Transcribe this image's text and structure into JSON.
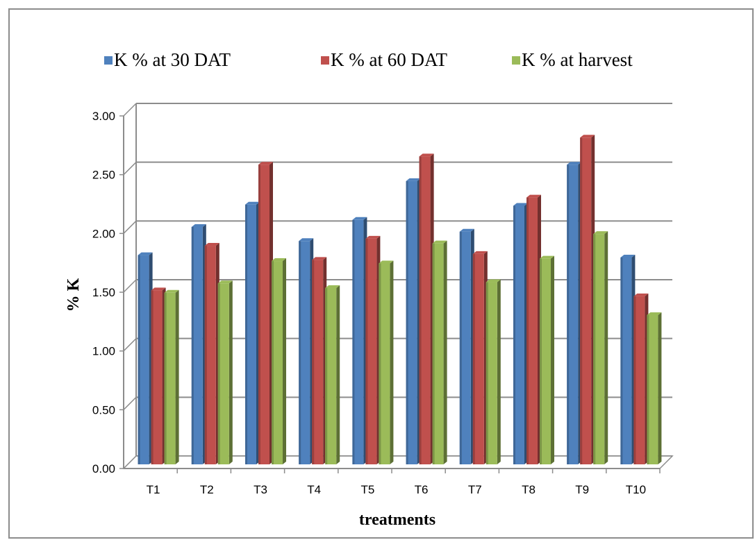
{
  "chart_data": {
    "type": "bar",
    "title": "",
    "xlabel": "treatments",
    "ylabel": "% K",
    "ylim": [
      0,
      3
    ],
    "y_ticks": [
      "0.00",
      "0.50",
      "1.00",
      "1.50",
      "2.00",
      "2.50",
      "3.00"
    ],
    "categories": [
      "T1",
      "T2",
      "T3",
      "T4",
      "T5",
      "T6",
      "T7",
      "T8",
      "T9",
      "T10"
    ],
    "series": [
      {
        "name": "K % at 30 DAT",
        "color": "#4f81bd",
        "values": [
          1.78,
          2.02,
          2.21,
          1.9,
          2.08,
          2.41,
          1.98,
          2.2,
          2.55,
          1.76
        ]
      },
      {
        "name": "K % at 60 DAT",
        "color": "#c0504d",
        "values": [
          1.48,
          1.86,
          2.55,
          1.74,
          1.92,
          2.62,
          1.79,
          2.27,
          2.78,
          1.43
        ]
      },
      {
        "name": "K % at harvest",
        "color": "#9bbb59",
        "values": [
          1.46,
          1.54,
          1.73,
          1.5,
          1.71,
          1.88,
          1.55,
          1.75,
          1.96,
          1.27
        ]
      }
    ],
    "grid": true,
    "legend_position": "top"
  }
}
